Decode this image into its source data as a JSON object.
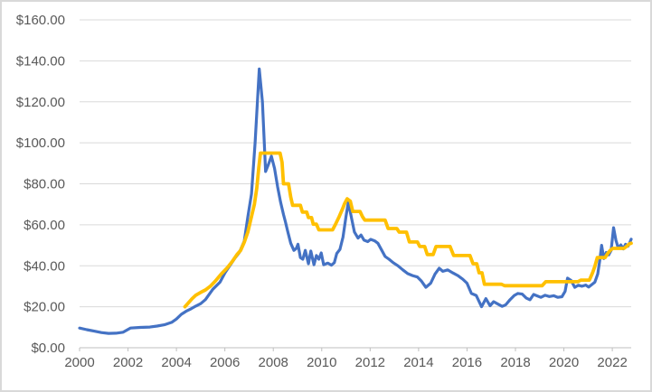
{
  "window": {
    "background_color": "#FFFFFF",
    "border_color": "#D9D9D9"
  },
  "chart_data": {
    "type": "line",
    "title": "",
    "xlabel": "",
    "ylabel": "",
    "legend_position": "none",
    "grid": "horizontal",
    "axis": {
      "ylim": [
        0,
        160
      ],
      "xlim": [
        2000,
        2022.78
      ],
      "y_tick_values": [
        0,
        20,
        40,
        60,
        80,
        100,
        120,
        140,
        160
      ],
      "y_tick_labels": [
        "$0.00",
        "$20.00",
        "$40.00",
        "$60.00",
        "$80.00",
        "$100.00",
        "$120.00",
        "$140.00",
        "$160.00"
      ],
      "x_tick_values": [
        2000,
        2002,
        2004,
        2006,
        2008,
        2010,
        2012,
        2014,
        2016,
        2018,
        2020,
        2022
      ],
      "x_tick_labels": [
        "2000",
        "2002",
        "2004",
        "2006",
        "2008",
        "2010",
        "2012",
        "2014",
        "2016",
        "2018",
        "2020",
        "2022"
      ],
      "label_color": "#595959",
      "gridline_color": "#D9D9D9",
      "axis_line_color": "#BFBFBF"
    },
    "series": [
      {
        "name": "blue-volatile-series",
        "color": "#4472C4",
        "stroke_width": 3.2,
        "points": [
          [
            2000.0,
            9.6
          ],
          [
            2000.3,
            8.8
          ],
          [
            2000.6,
            8.1
          ],
          [
            2000.9,
            7.4
          ],
          [
            2001.2,
            7.0
          ],
          [
            2001.5,
            7.1
          ],
          [
            2001.8,
            7.6
          ],
          [
            2002.1,
            9.6
          ],
          [
            2002.5,
            9.9
          ],
          [
            2002.9,
            10.1
          ],
          [
            2003.2,
            10.6
          ],
          [
            2003.5,
            11.2
          ],
          [
            2003.8,
            12.4
          ],
          [
            2004.0,
            14.0
          ],
          [
            2004.2,
            16.3
          ],
          [
            2004.4,
            17.8
          ],
          [
            2004.6,
            19.0
          ],
          [
            2004.8,
            20.3
          ],
          [
            2005.0,
            21.5
          ],
          [
            2005.2,
            23.5
          ],
          [
            2005.5,
            28.5
          ],
          [
            2005.8,
            32.0
          ],
          [
            2006.0,
            36.5
          ],
          [
            2006.2,
            40.0
          ],
          [
            2006.4,
            43.5
          ],
          [
            2006.6,
            46.5
          ],
          [
            2006.8,
            52.0
          ],
          [
            2006.95,
            64.0
          ],
          [
            2007.1,
            75.0
          ],
          [
            2007.25,
            100.0
          ],
          [
            2007.42,
            136.0
          ],
          [
            2007.55,
            120.0
          ],
          [
            2007.68,
            86.0
          ],
          [
            2007.8,
            89.5
          ],
          [
            2007.92,
            93.5
          ],
          [
            2008.05,
            87.5
          ],
          [
            2008.18,
            78.5
          ],
          [
            2008.3,
            71.0
          ],
          [
            2008.42,
            65.0
          ],
          [
            2008.5,
            61.5
          ],
          [
            2008.6,
            56.5
          ],
          [
            2008.72,
            51.0
          ],
          [
            2008.85,
            47.5
          ],
          [
            2008.95,
            48.5
          ],
          [
            2009.02,
            50.5
          ],
          [
            2009.12,
            44.0
          ],
          [
            2009.22,
            43.2
          ],
          [
            2009.32,
            47.5
          ],
          [
            2009.45,
            41.0
          ],
          [
            2009.55,
            47.2
          ],
          [
            2009.68,
            40.5
          ],
          [
            2009.78,
            45.0
          ],
          [
            2009.88,
            43.2
          ],
          [
            2009.98,
            46.3
          ],
          [
            2010.08,
            40.5
          ],
          [
            2010.25,
            41.3
          ],
          [
            2010.4,
            40.3
          ],
          [
            2010.52,
            41.5
          ],
          [
            2010.62,
            46.0
          ],
          [
            2010.75,
            48.0
          ],
          [
            2010.88,
            54.0
          ],
          [
            2011.0,
            64.0
          ],
          [
            2011.1,
            71.0
          ],
          [
            2011.22,
            64.0
          ],
          [
            2011.35,
            56.5
          ],
          [
            2011.5,
            53.5
          ],
          [
            2011.62,
            55.0
          ],
          [
            2011.75,
            52.5
          ],
          [
            2011.9,
            51.8
          ],
          [
            2012.02,
            52.9
          ],
          [
            2012.18,
            52.2
          ],
          [
            2012.32,
            51.0
          ],
          [
            2012.48,
            47.5
          ],
          [
            2012.62,
            44.5
          ],
          [
            2012.78,
            43.2
          ],
          [
            2012.95,
            41.5
          ],
          [
            2013.15,
            40.0
          ],
          [
            2013.35,
            38.0
          ],
          [
            2013.55,
            36.2
          ],
          [
            2013.75,
            35.2
          ],
          [
            2013.95,
            34.5
          ],
          [
            2014.12,
            32.5
          ],
          [
            2014.3,
            29.5
          ],
          [
            2014.5,
            31.5
          ],
          [
            2014.68,
            36.0
          ],
          [
            2014.85,
            38.8
          ],
          [
            2015.0,
            37.3
          ],
          [
            2015.2,
            38.0
          ],
          [
            2015.42,
            36.5
          ],
          [
            2015.62,
            35.2
          ],
          [
            2015.82,
            33.5
          ],
          [
            2016.0,
            31.5
          ],
          [
            2016.18,
            26.5
          ],
          [
            2016.38,
            25.5
          ],
          [
            2016.6,
            20.0
          ],
          [
            2016.78,
            24.0
          ],
          [
            2016.95,
            20.5
          ],
          [
            2017.1,
            22.5
          ],
          [
            2017.28,
            21.3
          ],
          [
            2017.45,
            20.2
          ],
          [
            2017.6,
            21.0
          ],
          [
            2017.78,
            23.5
          ],
          [
            2017.95,
            25.5
          ],
          [
            2018.1,
            26.5
          ],
          [
            2018.28,
            26.2
          ],
          [
            2018.45,
            24.2
          ],
          [
            2018.6,
            23.4
          ],
          [
            2018.75,
            26.0
          ],
          [
            2018.9,
            25.3
          ],
          [
            2019.05,
            24.6
          ],
          [
            2019.22,
            25.6
          ],
          [
            2019.4,
            25.0
          ],
          [
            2019.58,
            25.4
          ],
          [
            2019.75,
            24.6
          ],
          [
            2019.92,
            24.9
          ],
          [
            2020.05,
            27.5
          ],
          [
            2020.15,
            34.0
          ],
          [
            2020.3,
            32.8
          ],
          [
            2020.45,
            29.5
          ],
          [
            2020.6,
            30.5
          ],
          [
            2020.75,
            30.0
          ],
          [
            2020.9,
            30.6
          ],
          [
            2021.02,
            29.6
          ],
          [
            2021.15,
            30.8
          ],
          [
            2021.28,
            32.0
          ],
          [
            2021.4,
            36.0
          ],
          [
            2021.48,
            42.5
          ],
          [
            2021.56,
            50.0
          ],
          [
            2021.65,
            43.5
          ],
          [
            2021.75,
            46.5
          ],
          [
            2021.85,
            45.3
          ],
          [
            2021.95,
            47.5
          ],
          [
            2022.05,
            58.6
          ],
          [
            2022.15,
            52.5
          ],
          [
            2022.25,
            48.5
          ],
          [
            2022.35,
            50.2
          ],
          [
            2022.45,
            48.2
          ],
          [
            2022.55,
            50.5
          ],
          [
            2022.65,
            49.6
          ],
          [
            2022.72,
            51.3
          ],
          [
            2022.78,
            53.0
          ]
        ]
      },
      {
        "name": "gold-stepped-series",
        "color": "#FFC000",
        "stroke_width": 3.8,
        "points": [
          [
            2004.35,
            20.0
          ],
          [
            2004.5,
            22.0
          ],
          [
            2004.65,
            24.0
          ],
          [
            2004.8,
            25.6
          ],
          [
            2005.0,
            27.0
          ],
          [
            2005.2,
            28.2
          ],
          [
            2005.4,
            30.0
          ],
          [
            2005.6,
            32.5
          ],
          [
            2005.85,
            36.0
          ],
          [
            2006.1,
            39.0
          ],
          [
            2006.3,
            42.0
          ],
          [
            2006.5,
            45.5
          ],
          [
            2006.65,
            47.5
          ],
          [
            2006.8,
            51.5
          ],
          [
            2006.95,
            56.5
          ],
          [
            2007.1,
            64.0
          ],
          [
            2007.22,
            70.0
          ],
          [
            2007.32,
            78.0
          ],
          [
            2007.4,
            88.0
          ],
          [
            2007.47,
            95.0
          ],
          [
            2008.28,
            95.0
          ],
          [
            2008.36,
            90.5
          ],
          [
            2008.42,
            80.0
          ],
          [
            2008.63,
            80.0
          ],
          [
            2008.72,
            73.5
          ],
          [
            2008.8,
            69.5
          ],
          [
            2009.12,
            69.5
          ],
          [
            2009.2,
            66.2
          ],
          [
            2009.38,
            66.2
          ],
          [
            2009.45,
            63.5
          ],
          [
            2009.58,
            63.5
          ],
          [
            2009.65,
            60.3
          ],
          [
            2009.78,
            60.3
          ],
          [
            2009.88,
            57.5
          ],
          [
            2010.45,
            57.5
          ],
          [
            2010.58,
            60.5
          ],
          [
            2010.72,
            64.0
          ],
          [
            2010.85,
            67.5
          ],
          [
            2010.95,
            70.5
          ],
          [
            2011.05,
            72.7
          ],
          [
            2011.18,
            71.5
          ],
          [
            2011.28,
            66.5
          ],
          [
            2011.58,
            66.5
          ],
          [
            2011.68,
            64.0
          ],
          [
            2011.78,
            62.3
          ],
          [
            2012.62,
            62.3
          ],
          [
            2012.74,
            58.2
          ],
          [
            2013.1,
            58.2
          ],
          [
            2013.2,
            56.4
          ],
          [
            2013.5,
            56.4
          ],
          [
            2013.62,
            51.6
          ],
          [
            2013.95,
            51.6
          ],
          [
            2014.05,
            49.4
          ],
          [
            2014.25,
            49.4
          ],
          [
            2014.36,
            45.5
          ],
          [
            2014.6,
            45.5
          ],
          [
            2014.72,
            49.4
          ],
          [
            2015.3,
            49.4
          ],
          [
            2015.45,
            45.0
          ],
          [
            2016.12,
            45.0
          ],
          [
            2016.25,
            41.0
          ],
          [
            2016.4,
            41.0
          ],
          [
            2016.5,
            36.6
          ],
          [
            2016.62,
            36.6
          ],
          [
            2016.72,
            31.0
          ],
          [
            2017.42,
            31.0
          ],
          [
            2017.55,
            30.3
          ],
          [
            2019.1,
            30.3
          ],
          [
            2019.25,
            32.2
          ],
          [
            2020.58,
            32.2
          ],
          [
            2020.7,
            33.0
          ],
          [
            2021.05,
            33.0
          ],
          [
            2021.18,
            36.5
          ],
          [
            2021.28,
            39.7
          ],
          [
            2021.38,
            44.0
          ],
          [
            2021.7,
            44.0
          ],
          [
            2021.82,
            46.2
          ],
          [
            2021.92,
            47.6
          ],
          [
            2022.02,
            48.5
          ],
          [
            2022.48,
            48.5
          ],
          [
            2022.6,
            49.6
          ],
          [
            2022.7,
            50.7
          ],
          [
            2022.78,
            51.0
          ]
        ]
      }
    ]
  }
}
